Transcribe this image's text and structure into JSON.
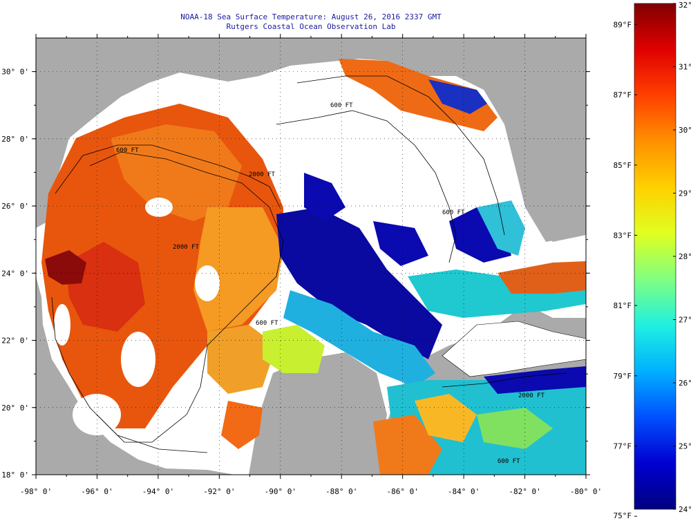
{
  "title": {
    "line1": "NOAA-18 Sea Surface Temperature:  August 26, 2016 2337 GMT",
    "line2": "Rutgers Coastal Ocean Observation Lab"
  },
  "map": {
    "lon_range": [
      -98,
      -80
    ],
    "lat_range": [
      18,
      31
    ],
    "lon_ticks": [
      -98,
      -96,
      -94,
      -92,
      -90,
      -88,
      -86,
      -84,
      -82,
      -80
    ],
    "lat_ticks": [
      18,
      20,
      22,
      24,
      26,
      28,
      30
    ],
    "lon_labels": [
      "-98° 0'",
      "-96° 0'",
      "-94° 0'",
      "-92° 0'",
      "-90° 0'",
      "-88° 0'",
      "-86° 0'",
      "-84° 0'",
      "-82° 0'",
      "-80° 0'"
    ],
    "lat_labels": [
      "18° 0'",
      "20° 0'",
      "22° 0'",
      "24° 0'",
      "26° 0'",
      "28° 0'",
      "30° 0'"
    ],
    "contour_labels": [
      "600 FT",
      "600 FT",
      "2000 FT",
      "2000 FT",
      "600 FT",
      "600 FT",
      "2000 FT",
      "600 FT"
    ],
    "colors": {
      "land": "#aaaaaa",
      "cloud": "#ffffff",
      "warm": "#e85a14",
      "hot": "#8b0a0a",
      "mid": "#f8b020",
      "cool": "#30d0d8",
      "cold": "#0a0aa0"
    }
  },
  "colorbar": {
    "celsius_labels": [
      "32°C",
      "31°C",
      "30°C",
      "29°C",
      "28°C",
      "27°C",
      "26°C",
      "25°C",
      "24°C"
    ],
    "fahrenheit_labels": [
      "89°F",
      "87°F",
      "85°F",
      "83°F",
      "81°F",
      "79°F",
      "77°F",
      "75°F"
    ],
    "celsius_range": [
      24,
      32
    ],
    "fahrenheit_values": [
      89,
      87,
      85,
      83,
      81,
      79,
      77,
      75
    ],
    "stops": [
      "#000080",
      "#0000d0",
      "#0050ff",
      "#00b0ff",
      "#20f0e0",
      "#80ff80",
      "#e0ff20",
      "#ffd000",
      "#ff9000",
      "#ff4000",
      "#e00000",
      "#800000"
    ]
  }
}
